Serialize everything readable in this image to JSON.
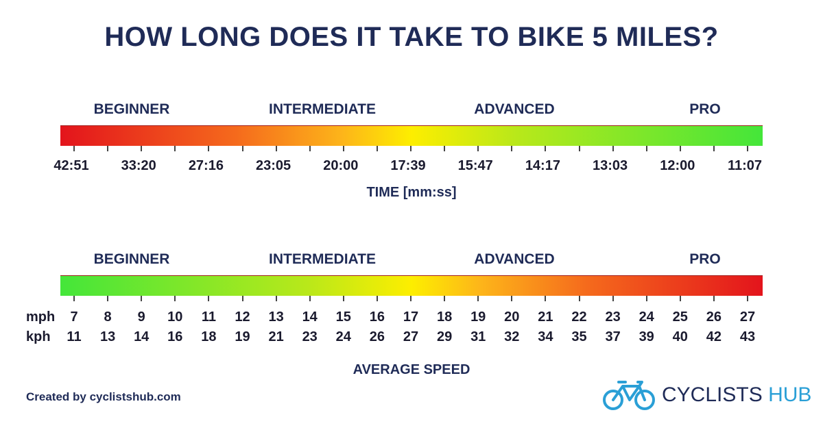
{
  "title": "HOW LONG DOES IT TAKE TO BIKE 5 MILES?",
  "time_scale": {
    "levels": [
      "BEGINNER",
      "INTERMEDIATE",
      "ADVANCED",
      "PRO"
    ],
    "ticks": [
      "42:51",
      "33:20",
      "27:16",
      "23:05",
      "20:00",
      "17:39",
      "15:47",
      "14:17",
      "13:03",
      "12:00",
      "11:07"
    ],
    "axis_label": "TIME [mm:ss]"
  },
  "speed_scale": {
    "levels": [
      "BEGINNER",
      "INTERMEDIATE",
      "ADVANCED",
      "PRO"
    ],
    "mph_label": "mph",
    "mph": [
      7,
      8,
      9,
      10,
      11,
      12,
      13,
      14,
      15,
      16,
      17,
      18,
      19,
      20,
      21,
      22,
      23,
      24,
      25,
      26,
      27
    ],
    "kph_label": "kph",
    "kph": [
      11,
      13,
      14,
      16,
      18,
      19,
      21,
      23,
      24,
      26,
      27,
      29,
      31,
      32,
      34,
      35,
      37,
      39,
      40,
      42,
      43
    ],
    "axis_label": "AVERAGE SPEED"
  },
  "footer": {
    "credit": "Created by cyclistshub.com",
    "logo_main": "CYCLISTS",
    "logo_accent": "HUB"
  }
}
